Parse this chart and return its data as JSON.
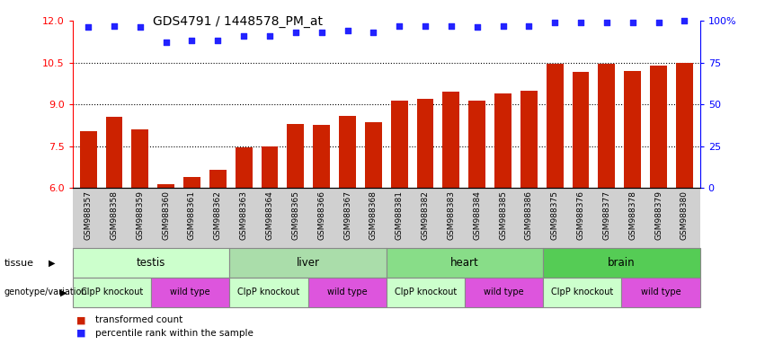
{
  "title": "GDS4791 / 1448578_PM_at",
  "samples": [
    "GSM988357",
    "GSM988358",
    "GSM988359",
    "GSM988360",
    "GSM988361",
    "GSM988362",
    "GSM988363",
    "GSM988364",
    "GSM988365",
    "GSM988366",
    "GSM988367",
    "GSM988368",
    "GSM988381",
    "GSM988382",
    "GSM988383",
    "GSM988384",
    "GSM988385",
    "GSM988386",
    "GSM988375",
    "GSM988376",
    "GSM988377",
    "GSM988378",
    "GSM988379",
    "GSM988380"
  ],
  "bar_values": [
    8.05,
    8.55,
    8.1,
    6.15,
    6.4,
    6.65,
    7.45,
    7.5,
    8.3,
    8.25,
    8.6,
    8.35,
    9.15,
    9.2,
    9.45,
    9.15,
    9.4,
    9.5,
    10.45,
    10.15,
    10.45,
    10.2,
    10.4,
    10.5
  ],
  "percentile_values": [
    96,
    97,
    96,
    87,
    88,
    88,
    91,
    91,
    93,
    93,
    94,
    93,
    97,
    97,
    97,
    96,
    97,
    97,
    99,
    99,
    99,
    99,
    99,
    100
  ],
  "tissues": [
    {
      "label": "testis",
      "start": 0,
      "end": 6,
      "color": "#ccffcc"
    },
    {
      "label": "liver",
      "start": 6,
      "end": 12,
      "color": "#aaddaa"
    },
    {
      "label": "heart",
      "start": 12,
      "end": 18,
      "color": "#88dd88"
    },
    {
      "label": "brain",
      "start": 18,
      "end": 24,
      "color": "#55cc55"
    }
  ],
  "genotypes": [
    {
      "label": "ClpP knockout",
      "start": 0,
      "end": 3,
      "color": "#ccffcc"
    },
    {
      "label": "wild type",
      "start": 3,
      "end": 6,
      "color": "#dd55dd"
    },
    {
      "label": "ClpP knockout",
      "start": 6,
      "end": 9,
      "color": "#ccffcc"
    },
    {
      "label": "wild type",
      "start": 9,
      "end": 12,
      "color": "#dd55dd"
    },
    {
      "label": "ClpP knockout",
      "start": 12,
      "end": 15,
      "color": "#ccffcc"
    },
    {
      "label": "wild type",
      "start": 15,
      "end": 18,
      "color": "#dd55dd"
    },
    {
      "label": "ClpP knockout",
      "start": 18,
      "end": 21,
      "color": "#ccffcc"
    },
    {
      "label": "wild type",
      "start": 21,
      "end": 24,
      "color": "#dd55dd"
    }
  ],
  "ylim_left": [
    6,
    12
  ],
  "ylim_right": [
    0,
    100
  ],
  "yticks_left": [
    6,
    7.5,
    9,
    10.5,
    12
  ],
  "yticks_right": [
    0,
    25,
    50,
    75,
    100
  ],
  "bar_color": "#cc2200",
  "point_color": "#2222ff",
  "bg_color": "#ffffff",
  "tick_bg_color": "#cccccc",
  "legend_items": [
    {
      "label": "transformed count",
      "color": "#cc2200"
    },
    {
      "label": "percentile rank within the sample",
      "color": "#2222ff"
    }
  ]
}
